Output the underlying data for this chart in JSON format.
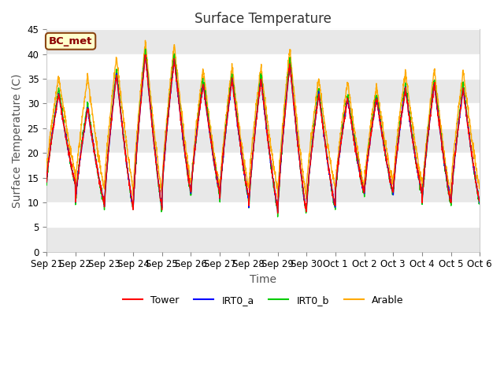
{
  "title": "Surface Temperature",
  "ylabel": "Surface Temperature (C)",
  "xlabel": "Time",
  "annotation": "BC_met",
  "ylim": [
    0,
    45
  ],
  "yticks": [
    0,
    5,
    10,
    15,
    20,
    25,
    30,
    35,
    40,
    45
  ],
  "xtick_labels": [
    "Sep 21",
    "Sep 22",
    "Sep 23",
    "Sep 24",
    "Sep 25",
    "Sep 26",
    "Sep 27",
    "Sep 28",
    "Sep 29",
    "Sep 30",
    "Oct 1",
    "Oct 2",
    "Oct 3",
    "Oct 4",
    "Oct 5",
    "Oct 6"
  ],
  "colors": {
    "Tower": "#ff0000",
    "IRT0_a": "#0000ff",
    "IRT0_b": "#00cc00",
    "Arable": "#ffaa00"
  },
  "legend_labels": [
    "Tower",
    "IRT0_a",
    "IRT0_b",
    "Arable"
  ],
  "plot_bg_white": "#ffffff",
  "plot_bg_gray": "#e8e8e8",
  "title_fontsize": 12,
  "axis_label_fontsize": 10,
  "tick_fontsize": 8.5
}
